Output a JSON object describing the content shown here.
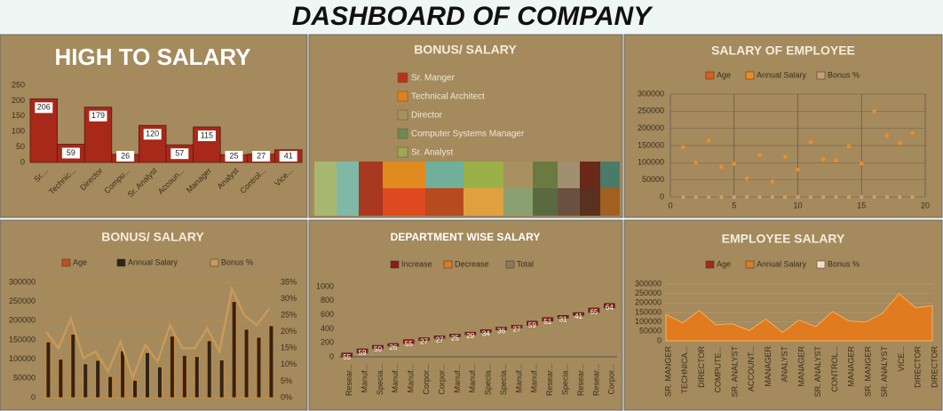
{
  "title": "DASHBOARD OF COMPANY",
  "chart_data": [
    {
      "type": "bar",
      "title": "HIGH TO SALARY",
      "color": "#a8281a",
      "categories": [
        "Sr....",
        "Technic...",
        "Director",
        "Compu...",
        "Sr. Analyst",
        "Accoun...",
        "Manager",
        "Analyst",
        "Control...",
        "Vice..."
      ],
      "values": [
        206,
        59,
        179,
        26,
        120,
        57,
        115,
        25,
        27,
        41
      ],
      "ylim": [
        0,
        250
      ],
      "yticks": [
        0,
        50,
        100,
        150,
        200,
        250
      ]
    },
    {
      "type": "heatmap",
      "title": "BONUS/ SALARY",
      "series": [
        {
          "name": "Sr. Manger",
          "color": "#b8321e"
        },
        {
          "name": "Technical Architect",
          "color": "#e0801e"
        },
        {
          "name": "Director",
          "color": "#a89060"
        },
        {
          "name": "Computer Systems Manager",
          "color": "#6c8a58"
        },
        {
          "name": "Sr. Analyst",
          "color": "#9aaa50"
        }
      ]
    },
    {
      "type": "scatter",
      "title": "SALARY OF EMPLOYEE",
      "x": [
        1,
        2,
        3,
        4,
        5,
        6,
        7,
        8,
        9,
        10,
        11,
        12,
        13,
        14,
        15,
        16,
        17,
        18,
        19
      ],
      "series": [
        {
          "name": "Age",
          "color": "#d9601a",
          "values": [
            45,
            38,
            50,
            42,
            35,
            30,
            41,
            28,
            40,
            33,
            48,
            36,
            37,
            46,
            34,
            55,
            44,
            47,
            52
          ]
        },
        {
          "name": "Annual Salary",
          "color": "#f08c28",
          "values": [
            145000,
            100000,
            165000,
            88000,
            97000,
            55000,
            122000,
            45000,
            117000,
            80000,
            160000,
            110000,
            107000,
            148000,
            98000,
            250000,
            178000,
            157000,
            187000
          ]
        },
        {
          "name": "Bonus %",
          "color": "#c8a070",
          "values": [
            20,
            15,
            24,
            12,
            14,
            8,
            17,
            6,
            16,
            11,
            22,
            15,
            15,
            21,
            14,
            33,
            25,
            22,
            27
          ]
        }
      ],
      "xlim": [
        0,
        20
      ],
      "xticks": [
        0,
        5,
        10,
        15,
        20
      ],
      "ylim": [
        0,
        300000
      ],
      "yticks": [
        0,
        50000,
        100000,
        150000,
        200000,
        250000,
        300000
      ]
    },
    {
      "type": "combo",
      "title": "BONUS/ SALARY",
      "series": [
        {
          "name": "Age",
          "color": "#c0501e",
          "kind": "bar",
          "values": [
            45,
            38,
            50,
            42,
            35,
            30,
            41,
            28,
            40,
            33,
            48,
            36,
            37,
            46,
            34,
            55,
            44,
            47,
            52
          ]
        },
        {
          "name": "Annual Salary",
          "color": "#2e2418",
          "kind": "bar",
          "values": [
            145000,
            100000,
            165000,
            88000,
            97000,
            55000,
            122000,
            45000,
            117000,
            80000,
            160000,
            110000,
            107000,
            148000,
            98000,
            250000,
            178000,
            157000,
            187000
          ]
        },
        {
          "name": "Bonus %",
          "color": "#c89a5a",
          "kind": "line",
          "axis": "y2",
          "values": [
            20,
            15,
            24,
            12,
            14,
            8,
            17,
            6,
            16,
            11,
            22,
            15,
            15,
            21,
            14,
            33,
            25,
            22,
            27
          ]
        }
      ],
      "ylim": [
        0,
        300000
      ],
      "yticks": [
        0,
        50000,
        100000,
        150000,
        200000,
        250000,
        300000
      ],
      "y2lim": [
        0,
        35
      ],
      "y2ticks": [
        {
          "value": 0,
          "label": "0%"
        },
        {
          "value": 5,
          "label": "5%"
        },
        {
          "value": 10,
          "label": "10%"
        },
        {
          "value": 15,
          "label": "15%"
        },
        {
          "value": 20,
          "label": "20%"
        },
        {
          "value": 25,
          "label": "25%"
        },
        {
          "value": 30,
          "label": "30%"
        },
        {
          "value": 35,
          "label": "35%"
        }
      ]
    },
    {
      "type": "waterfall",
      "title": "DEPARTMENT WISE SALARY",
      "legend": [
        "Increase",
        "Decrease",
        "Total"
      ],
      "legend_colors": [
        "#8e1c12",
        "#e07b20",
        "#8a7a5a"
      ],
      "categories": [
        "Resear...",
        "Manuf...",
        "Specia...",
        "Manuf...",
        "Manuf...",
        "Corpor...",
        "Corpor...",
        "Manuf...",
        "Manuf...",
        "Specia...",
        "Specia...",
        "Manuf...",
        "Manuf...",
        "Resear...",
        "Specia...",
        "Resear...",
        "Resear...",
        "Corpor..."
      ],
      "values": [
        55,
        59,
        50,
        26,
        55,
        27,
        27,
        25,
        29,
        34,
        36,
        27,
        59,
        51,
        31,
        41,
        65,
        64
      ],
      "ylim": [
        0,
        1000
      ],
      "yticks": [
        0,
        200,
        400,
        600,
        800,
        1000
      ]
    },
    {
      "type": "area",
      "title": "EMPLOYEE SALARY",
      "legend": [
        "Age",
        "Annual Salary",
        "Bonus %"
      ],
      "legend_colors": [
        "#a8281a",
        "#e07b20",
        "#f0e0c8"
      ],
      "categories": [
        "SR. MANGER",
        "TECHNICA...",
        "DIRECTOR",
        "COMPUTE...",
        "SR. ANALYST",
        "ACCOUNT...",
        "MANAGER",
        "ANALYST",
        "MANAGER",
        "SR. ANALYST",
        "CONTROL...",
        "MANAGER",
        "SR. MANGER",
        "SR. ANALYST",
        "VICE...",
        "DIRECTOR",
        "DIRECTOR"
      ],
      "series": [
        {
          "name": "Annual Salary",
          "color": "#e07b20",
          "values": [
            140000,
            95000,
            160000,
            85000,
            90000,
            55000,
            115000,
            45000,
            110000,
            75000,
            155000,
            105000,
            100000,
            145000,
            250000,
            175000,
            185000
          ]
        }
      ],
      "ylim": [
        0,
        300000
      ],
      "yticks": [
        0,
        50000,
        100000,
        150000,
        200000,
        250000,
        300000
      ]
    }
  ]
}
